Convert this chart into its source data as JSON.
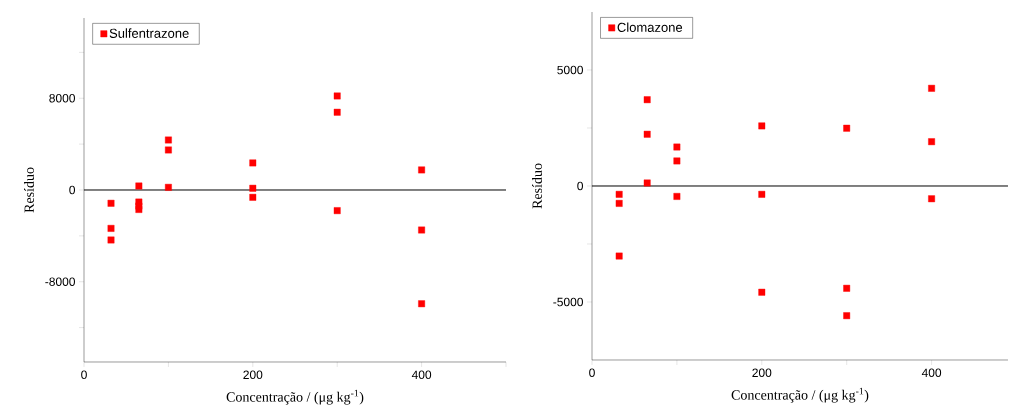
{
  "chart_data": [
    {
      "type": "scatter",
      "xlabel": "Concentração / (μg kg$^{-1}$)",
      "ylabel": "Resíduo",
      "xlim": [
        0,
        500
      ],
      "ylim": [
        -15000,
        15000
      ],
      "xticks": [
        0,
        {
          "value": 100,
          "label": null
        },
        200,
        {
          "value": 300,
          "label": null
        },
        400,
        {
          "value": 500,
          "label": null
        }
      ],
      "yticks": [
        {
          "value": -12000,
          "label": null
        },
        -8000,
        {
          "value": -4000,
          "label": null
        },
        0,
        {
          "value": 4000,
          "label": null
        },
        8000,
        {
          "value": 12000,
          "label": null
        }
      ],
      "grid": false,
      "legend": "top left",
      "marker": "square",
      "ref_lines": [
        {
          "axis": "y",
          "value": 0,
          "color": "#000000"
        }
      ],
      "series": [
        {
          "name": "Sulfentrazone",
          "color": "#ff0000",
          "x": [
            32,
            32,
            32,
            65,
            65,
            65,
            65,
            100,
            100,
            100,
            200,
            200,
            200,
            300,
            300,
            300,
            400,
            400,
            400
          ],
          "values": [
            -1160,
            -3350,
            -4360,
            350,
            -1050,
            -1400,
            -1700,
            4360,
            3490,
            230,
            2360,
            150,
            -640,
            8200,
            6780,
            -1800,
            1750,
            -3490,
            -9920
          ]
        }
      ]
    },
    {
      "type": "scatter",
      "xlabel": "Concentração / (μg kg$^{-1}$)",
      "ylabel": "Resíduo",
      "xlim": [
        0,
        490
      ],
      "ylim": [
        -7500,
        7500
      ],
      "xticks": [
        0,
        {
          "value": 100,
          "label": null
        },
        200,
        {
          "value": 300,
          "label": null
        },
        400
      ],
      "yticks": [
        -5000,
        {
          "value": -2500,
          "label": null
        },
        0,
        {
          "value": 2500,
          "label": null
        },
        5000
      ],
      "grid": false,
      "legend": "top left",
      "marker": "square",
      "ref_lines": [
        {
          "axis": "y",
          "value": 0,
          "color": "#000000"
        }
      ],
      "series": [
        {
          "name": "Clomazone",
          "color": "#ff0000",
          "x": [
            32,
            32,
            32,
            65,
            65,
            65,
            100,
            100,
            100,
            200,
            200,
            200,
            300,
            300,
            300,
            400,
            400,
            400
          ],
          "values": [
            -360,
            -750,
            -3020,
            3720,
            2230,
            130,
            1680,
            1080,
            -450,
            2590,
            -360,
            -4580,
            2490,
            -4410,
            -5590,
            4210,
            1910,
            -550
          ]
        }
      ]
    }
  ]
}
